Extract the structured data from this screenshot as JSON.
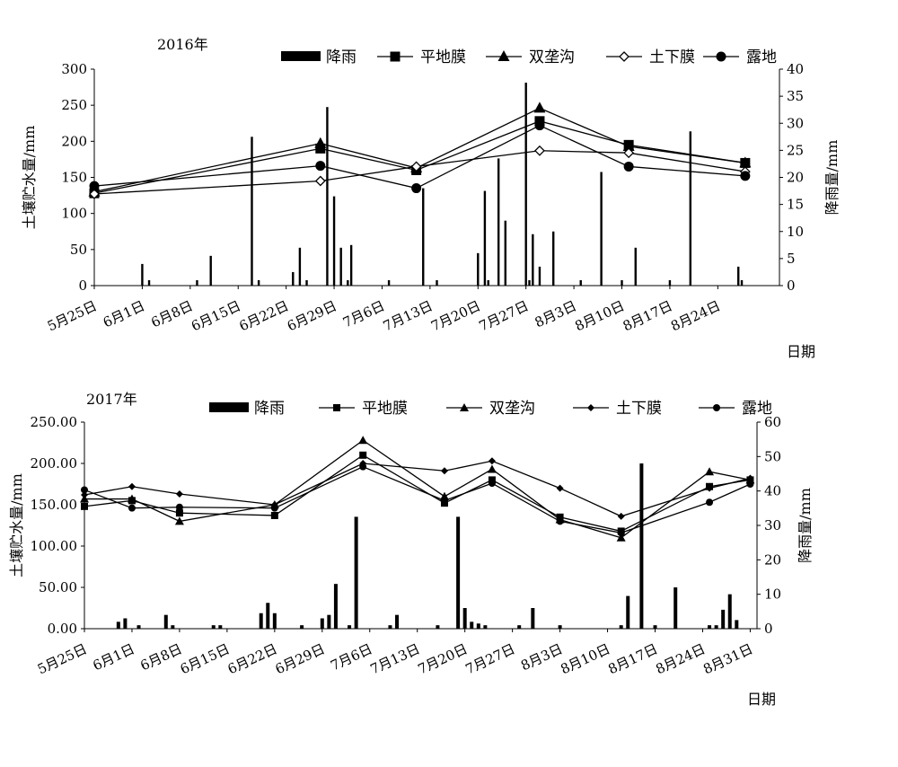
{
  "chart_data": [
    {
      "type": "bar+line",
      "title": "2016年",
      "xlabel": "日期",
      "ylabel_left": "土壤贮水量/mm",
      "ylabel_right": "降雨量/mm",
      "ylim_left": [
        0,
        300
      ],
      "ylim_right": [
        0,
        40
      ],
      "yticks_left": [
        "0",
        "50",
        "100",
        "150",
        "200",
        "250",
        "300"
      ],
      "yticks_right": [
        "0",
        "5",
        "10",
        "15",
        "20",
        "25",
        "30",
        "35",
        "40"
      ],
      "xticks": [
        "5月25日",
        "6月1日",
        "6月8日",
        "6月15日",
        "6月22日",
        "6月29日",
        "7月6日",
        "7月13日",
        "7月20日",
        "7月27日",
        "8月3日",
        "8月10日",
        "8月17日",
        "8月24日"
      ],
      "legend": [
        "降雨",
        "平地膜",
        "双垄沟",
        "土下膜",
        "露地"
      ],
      "rain": [
        [
          7,
          4
        ],
        [
          8,
          1
        ],
        [
          15,
          1
        ],
        [
          17,
          5.5
        ],
        [
          23,
          27.5
        ],
        [
          24,
          1
        ],
        [
          29,
          2.5
        ],
        [
          30,
          7
        ],
        [
          31,
          1
        ],
        [
          34,
          33
        ],
        [
          35,
          16.5
        ],
        [
          36,
          7
        ],
        [
          37,
          1
        ],
        [
          37.5,
          7.5
        ],
        [
          43,
          1
        ],
        [
          48,
          18
        ],
        [
          50,
          1
        ],
        [
          56,
          6
        ],
        [
          57,
          17.5
        ],
        [
          57.5,
          1
        ],
        [
          59,
          23.5
        ],
        [
          60,
          12
        ],
        [
          63,
          37.5
        ],
        [
          63.5,
          1
        ],
        [
          64,
          9.5
        ],
        [
          65,
          3.5
        ],
        [
          67,
          10
        ],
        [
          71,
          1
        ],
        [
          74,
          21
        ],
        [
          77,
          1
        ],
        [
          79,
          7
        ],
        [
          84,
          1
        ],
        [
          87,
          28.5
        ],
        [
          94,
          3.5
        ],
        [
          94.5,
          1
        ]
      ],
      "series": [
        {
          "name": "平地膜",
          "x": [
            0,
            33,
            47,
            65,
            78,
            95
          ],
          "values": [
            128,
            190,
            160,
            228,
            195,
            170
          ]
        },
        {
          "name": "双垄沟",
          "x": [
            0,
            33,
            47,
            65,
            78,
            95
          ],
          "values": [
            130,
            197,
            163,
            246,
            193,
            170
          ]
        },
        {
          "name": "土下膜",
          "x": [
            0,
            33,
            47,
            65,
            78,
            95
          ],
          "values": [
            127,
            145,
            165,
            187,
            184,
            158
          ]
        },
        {
          "name": "露地",
          "x": [
            0,
            33,
            47,
            65,
            78,
            95
          ],
          "values": [
            138,
            166,
            135,
            222,
            165,
            152
          ]
        }
      ]
    },
    {
      "type": "bar+line",
      "title": "2017年",
      "xlabel": "日期",
      "ylabel_left": "土壤贮水量/mm",
      "ylabel_right": "降雨量/mm",
      "ylim_left": [
        0,
        250
      ],
      "ylim_right": [
        0,
        60
      ],
      "yticks_left": [
        "0.00",
        "50.00",
        "100.00",
        "150.00",
        "200.00",
        "250.00"
      ],
      "yticks_right": [
        "0",
        "10",
        "20",
        "30",
        "40",
        "50",
        "60"
      ],
      "xticks": [
        "5月25日",
        "6月1日",
        "6月8日",
        "6月15日",
        "6月22日",
        "6月29日",
        "7月6日",
        "7月13日",
        "7月20日",
        "7月27日",
        "8月3日",
        "8月10日",
        "8月17日",
        "8月24日",
        "8月31日"
      ],
      "legend": [
        "降雨",
        "平地膜",
        "双垄沟",
        "土下膜",
        "露地"
      ],
      "rain": [
        [
          5,
          2
        ],
        [
          6,
          3
        ],
        [
          8,
          1
        ],
        [
          12,
          4
        ],
        [
          13,
          1
        ],
        [
          19,
          1
        ],
        [
          20,
          1
        ],
        [
          26,
          4.5
        ],
        [
          27,
          7.5
        ],
        [
          28,
          4.5
        ],
        [
          32,
          1
        ],
        [
          35,
          3
        ],
        [
          36,
          4
        ],
        [
          37,
          13
        ],
        [
          39,
          1
        ],
        [
          40,
          32.5
        ],
        [
          45,
          1
        ],
        [
          46,
          4
        ],
        [
          52,
          1
        ],
        [
          55,
          32.5
        ],
        [
          56,
          6
        ],
        [
          57,
          2
        ],
        [
          58,
          1.5
        ],
        [
          59,
          1
        ],
        [
          64,
          1
        ],
        [
          66,
          6
        ],
        [
          70,
          1
        ],
        [
          79,
          1
        ],
        [
          80,
          9.5
        ],
        [
          82,
          48
        ],
        [
          84,
          1
        ],
        [
          87,
          12
        ],
        [
          92,
          1
        ],
        [
          93,
          1
        ],
        [
          94,
          5.5
        ],
        [
          95,
          10
        ],
        [
          96,
          2.5
        ]
      ],
      "series": [
        {
          "name": "平地膜",
          "x": [
            0,
            7,
            14,
            28,
            41,
            53,
            60,
            70,
            79,
            92,
            98
          ],
          "values": [
            148,
            155,
            140,
            137,
            210,
            152,
            180,
            135,
            118,
            172,
            180
          ]
        },
        {
          "name": "双垄沟",
          "x": [
            0,
            7,
            14,
            28,
            41,
            53,
            60,
            70,
            79,
            92,
            98
          ],
          "values": [
            157,
            157,
            130,
            150,
            228,
            160,
            193,
            132,
            110,
            190,
            180
          ]
        },
        {
          "name": "土下膜",
          "x": [
            0,
            7,
            14,
            28,
            41,
            53,
            60,
            70,
            79,
            92,
            98
          ],
          "values": [
            162,
            172,
            163,
            150,
            200,
            191,
            203,
            170,
            136,
            170,
            182
          ]
        },
        {
          "name": "露地",
          "x": [
            0,
            7,
            14,
            28,
            41,
            53,
            60,
            70,
            79,
            92,
            98
          ],
          "values": [
            168,
            146,
            147,
            146,
            196,
            155,
            176,
            130,
            116,
            153,
            175
          ]
        }
      ]
    }
  ]
}
